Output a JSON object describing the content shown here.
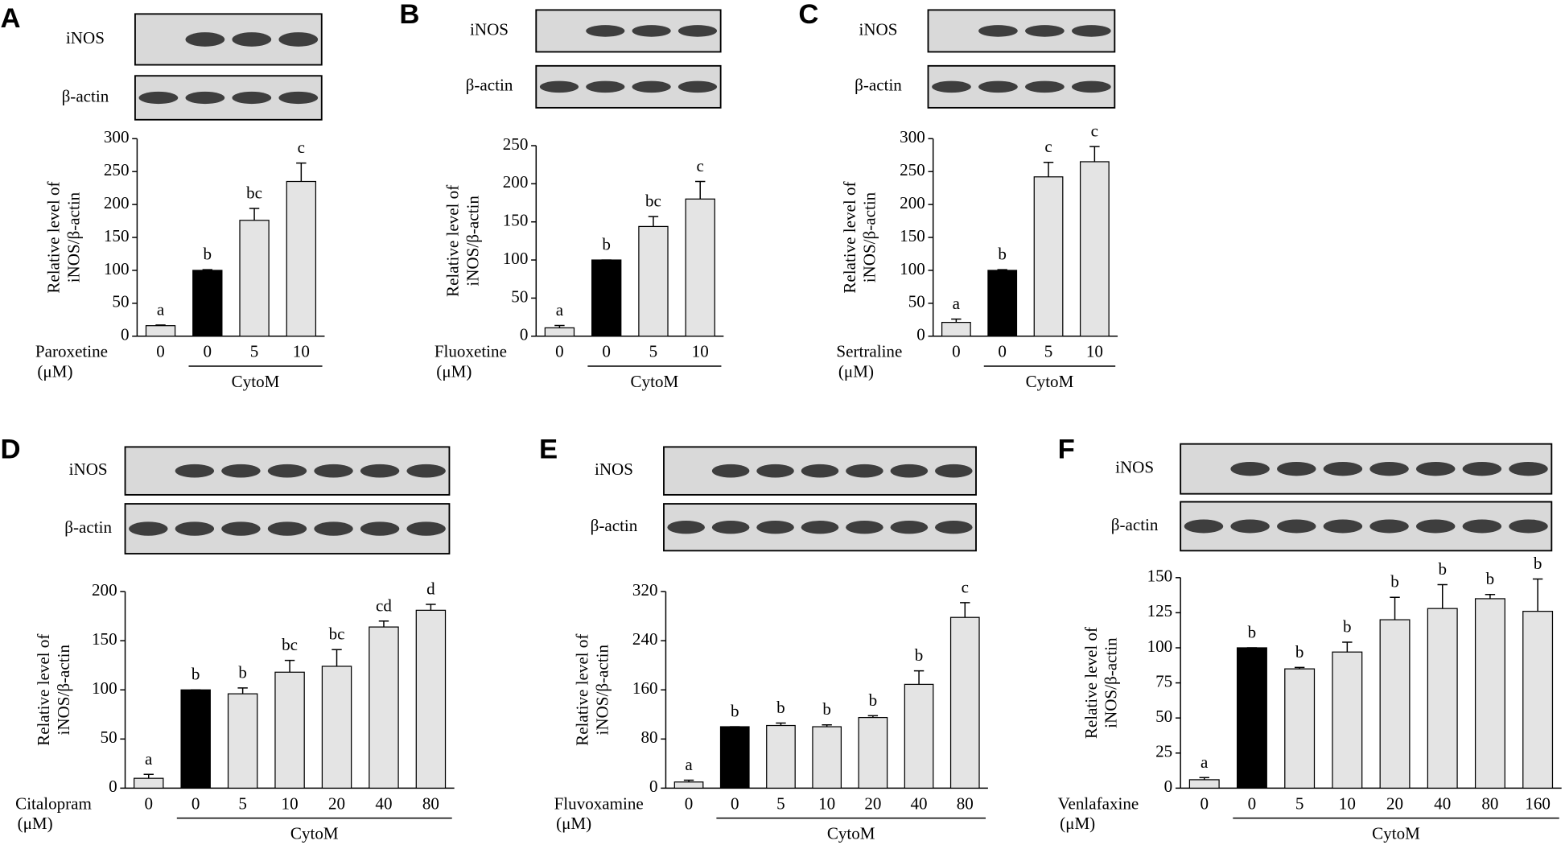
{
  "chart_data": [
    {
      "type": "bar",
      "label": "A",
      "blot_labels": [
        "iNOS",
        "β-actin"
      ],
      "ylabel": [
        "Relative level of",
        "iNOS/β-actin"
      ],
      "xlabel": [
        "Paroxetine",
        "(μM)"
      ],
      "group_label": "CytoM",
      "categories": [
        "0",
        "0",
        "5",
        "10"
      ],
      "values": [
        16,
        100,
        176,
        235
      ],
      "errors": [
        1,
        1,
        18,
        28
      ],
      "annotations": [
        "a",
        "b",
        "bc",
        "c"
      ],
      "colors": [
        "#e4e4e4",
        "#000000",
        "#e4e4e4",
        "#e4e4e4"
      ],
      "ylim": [
        0,
        300
      ],
      "yticks": [
        0,
        50,
        100,
        150,
        200,
        250,
        300
      ]
    },
    {
      "type": "bar",
      "label": "B",
      "blot_labels": [
        "iNOS",
        "β-actin"
      ],
      "ylabel": [
        "Relative level of",
        "iNOS/β-actin"
      ],
      "xlabel": [
        "Fluoxetine",
        "(μM)"
      ],
      "group_label": "CytoM",
      "categories": [
        "0",
        "0",
        "5",
        "10"
      ],
      "values": [
        11,
        100,
        144,
        180
      ],
      "errors": [
        3,
        0,
        13,
        23
      ],
      "annotations": [
        "a",
        "b",
        "bc",
        "c"
      ],
      "colors": [
        "#e4e4e4",
        "#000000",
        "#e4e4e4",
        "#e4e4e4"
      ],
      "ylim": [
        0,
        250
      ],
      "yticks": [
        0,
        50,
        100,
        150,
        200,
        250
      ]
    },
    {
      "type": "bar",
      "label": "C",
      "blot_labels": [
        "iNOS",
        "β-actin"
      ],
      "ylabel": [
        "Relative level of",
        "iNOS/β-actin"
      ],
      "xlabel": [
        "Sertraline",
        "(μM)"
      ],
      "group_label": "CytoM",
      "categories": [
        "0",
        "0",
        "5",
        "10"
      ],
      "values": [
        21,
        100,
        242,
        265
      ],
      "errors": [
        5,
        1,
        22,
        23
      ],
      "annotations": [
        "a",
        "b",
        "c",
        "c"
      ],
      "colors": [
        "#e4e4e4",
        "#000000",
        "#e4e4e4",
        "#e4e4e4"
      ],
      "ylim": [
        0,
        300
      ],
      "yticks": [
        0,
        50,
        100,
        150,
        200,
        250,
        300
      ]
    },
    {
      "type": "bar",
      "label": "D",
      "blot_labels": [
        "iNOS",
        "β-actin"
      ],
      "ylabel": [
        "Relative level of",
        "iNOS/β-actin"
      ],
      "xlabel": [
        "Citalopram",
        "(μM)"
      ],
      "group_label": "CytoM",
      "categories": [
        "0",
        "0",
        "5",
        "10",
        "20",
        "40",
        "80"
      ],
      "values": [
        10,
        100,
        96,
        118,
        124,
        164,
        181
      ],
      "errors": [
        4,
        0,
        6,
        12,
        17,
        6,
        6
      ],
      "annotations": [
        "a",
        "b",
        "b",
        "bc",
        "bc",
        "cd",
        "d"
      ],
      "colors": [
        "#e4e4e4",
        "#000000",
        "#e4e4e4",
        "#e4e4e4",
        "#e4e4e4",
        "#e4e4e4",
        "#e4e4e4"
      ],
      "ylim": [
        0,
        200
      ],
      "yticks": [
        0,
        50,
        100,
        150,
        200
      ]
    },
    {
      "type": "bar",
      "label": "E",
      "blot_labels": [
        "iNOS",
        "β-actin"
      ],
      "ylabel": [
        "Relative level of",
        "iNOS/β-actin"
      ],
      "xlabel": [
        "Fluvoxamine",
        "(μM)"
      ],
      "group_label": "CytoM",
      "categories": [
        "0",
        "0",
        "5",
        "10",
        "20",
        "40",
        "80"
      ],
      "values": [
        10,
        100,
        102,
        100,
        115,
        169,
        278
      ],
      "errors": [
        3,
        0,
        4,
        3,
        3,
        22,
        24
      ],
      "annotations": [
        "a",
        "b",
        "b",
        "b",
        "b",
        "b",
        "c"
      ],
      "colors": [
        "#e4e4e4",
        "#000000",
        "#e4e4e4",
        "#e4e4e4",
        "#e4e4e4",
        "#e4e4e4",
        "#e4e4e4"
      ],
      "ylim": [
        0,
        320
      ],
      "yticks": [
        0,
        80,
        160,
        240,
        320
      ]
    },
    {
      "type": "bar",
      "label": "F",
      "blot_labels": [
        "iNOS",
        "β-actin"
      ],
      "ylabel": [
        "Relative level of",
        "iNOS/β-actin"
      ],
      "xlabel": [
        "Venlafaxine",
        "(μM)"
      ],
      "group_label": "CytoM",
      "categories": [
        "0",
        "0",
        "5",
        "10",
        "20",
        "40",
        "80",
        "160"
      ],
      "values": [
        6,
        100,
        85,
        97,
        120,
        128,
        135,
        126
      ],
      "errors": [
        1.5,
        0,
        1,
        7,
        16,
        17,
        3,
        23
      ],
      "annotations": [
        "a",
        "b",
        "b",
        "b",
        "b",
        "b",
        "b",
        "b"
      ],
      "colors": [
        "#e4e4e4",
        "#000000",
        "#e4e4e4",
        "#e4e4e4",
        "#e4e4e4",
        "#e4e4e4",
        "#e4e4e4",
        "#e4e4e4"
      ],
      "ylim": [
        0,
        150
      ],
      "yticks": [
        0,
        25,
        50,
        75,
        100,
        125,
        150
      ]
    }
  ]
}
